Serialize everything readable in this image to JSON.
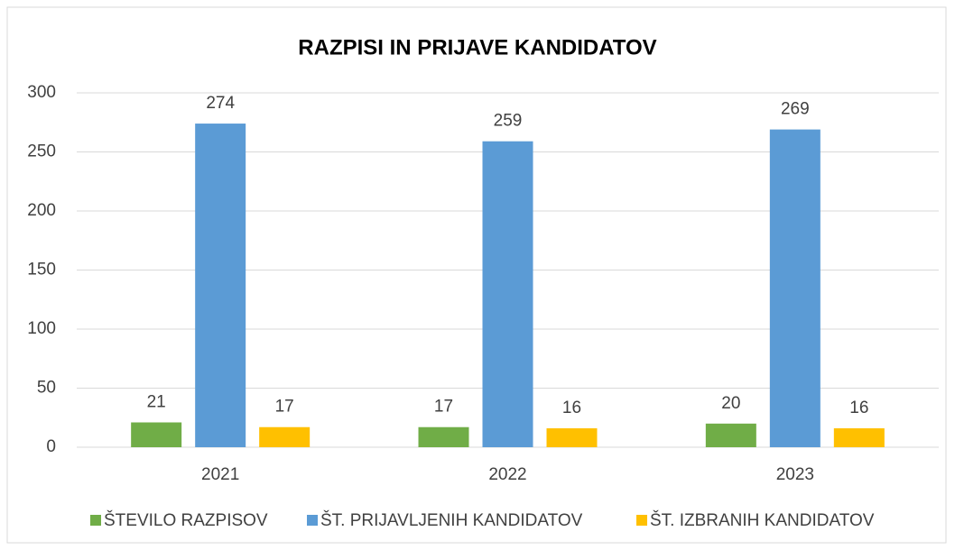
{
  "chart_data": {
    "type": "bar",
    "title": "RAZPISI IN PRIJAVE KANDIDATOV",
    "categories": [
      "2021",
      "2022",
      "2023"
    ],
    "series": [
      {
        "name": "ŠTEVILO RAZPISOV",
        "color": "#70ad47",
        "values": [
          21,
          17,
          20
        ]
      },
      {
        "name": "ŠT. PRIJAVLJENIH KANDIDATOV",
        "color": "#5b9bd5",
        "values": [
          274,
          259,
          269
        ]
      },
      {
        "name": "ŠT. IZBRANIH KANDIDATOV",
        "color": "#ffc000",
        "values": [
          17,
          16,
          16
        ]
      }
    ],
    "ylim": [
      0,
      300
    ],
    "yticks": [
      0,
      50,
      100,
      150,
      200,
      250,
      300
    ],
    "grid": true,
    "legend": "bottom"
  }
}
